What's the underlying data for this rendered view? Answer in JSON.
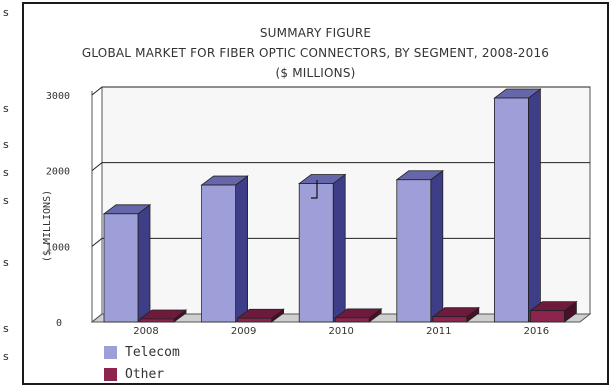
{
  "chart_data": {
    "type": "bar",
    "title": "SUMMARY FIGURE",
    "subtitle": "GLOBAL MARKET FOR FIBER OPTIC CONNECTORS, BY SEGMENT, 2008-2016",
    "units_line": "($ MILLIONS)",
    "xlabel": "",
    "ylabel": "($ MILLIONS)",
    "categories": [
      "2008",
      "2009",
      "2010",
      "2011",
      "2016"
    ],
    "series": [
      {
        "name": "Telecom",
        "values": [
          1430,
          1810,
          1830,
          1880,
          2960
        ],
        "color": "#9e9ed8"
      },
      {
        "name": "Other",
        "values": [
          40,
          50,
          55,
          70,
          150
        ],
        "color": "#8b2550"
      }
    ],
    "ylim": [
      0,
      3000
    ],
    "yticks": [
      "0",
      "1000",
      "2000",
      "3000"
    ],
    "grid": true,
    "three_d": true,
    "legend_placement": "bottom-left"
  },
  "page_edge": {
    "marks": [
      "s",
      "s",
      "s",
      "s",
      "s",
      "s",
      "s",
      "s"
    ]
  },
  "colors": {
    "telecom_front": "#9e9ed8",
    "telecom_top": "#6666aa",
    "telecom_side": "#3d3d88",
    "other_front": "#8b2550",
    "other_top": "#6e1a3d",
    "other_side": "#4a0f28",
    "wall": "#f7f7f7",
    "floor": "#cfcfcf"
  }
}
